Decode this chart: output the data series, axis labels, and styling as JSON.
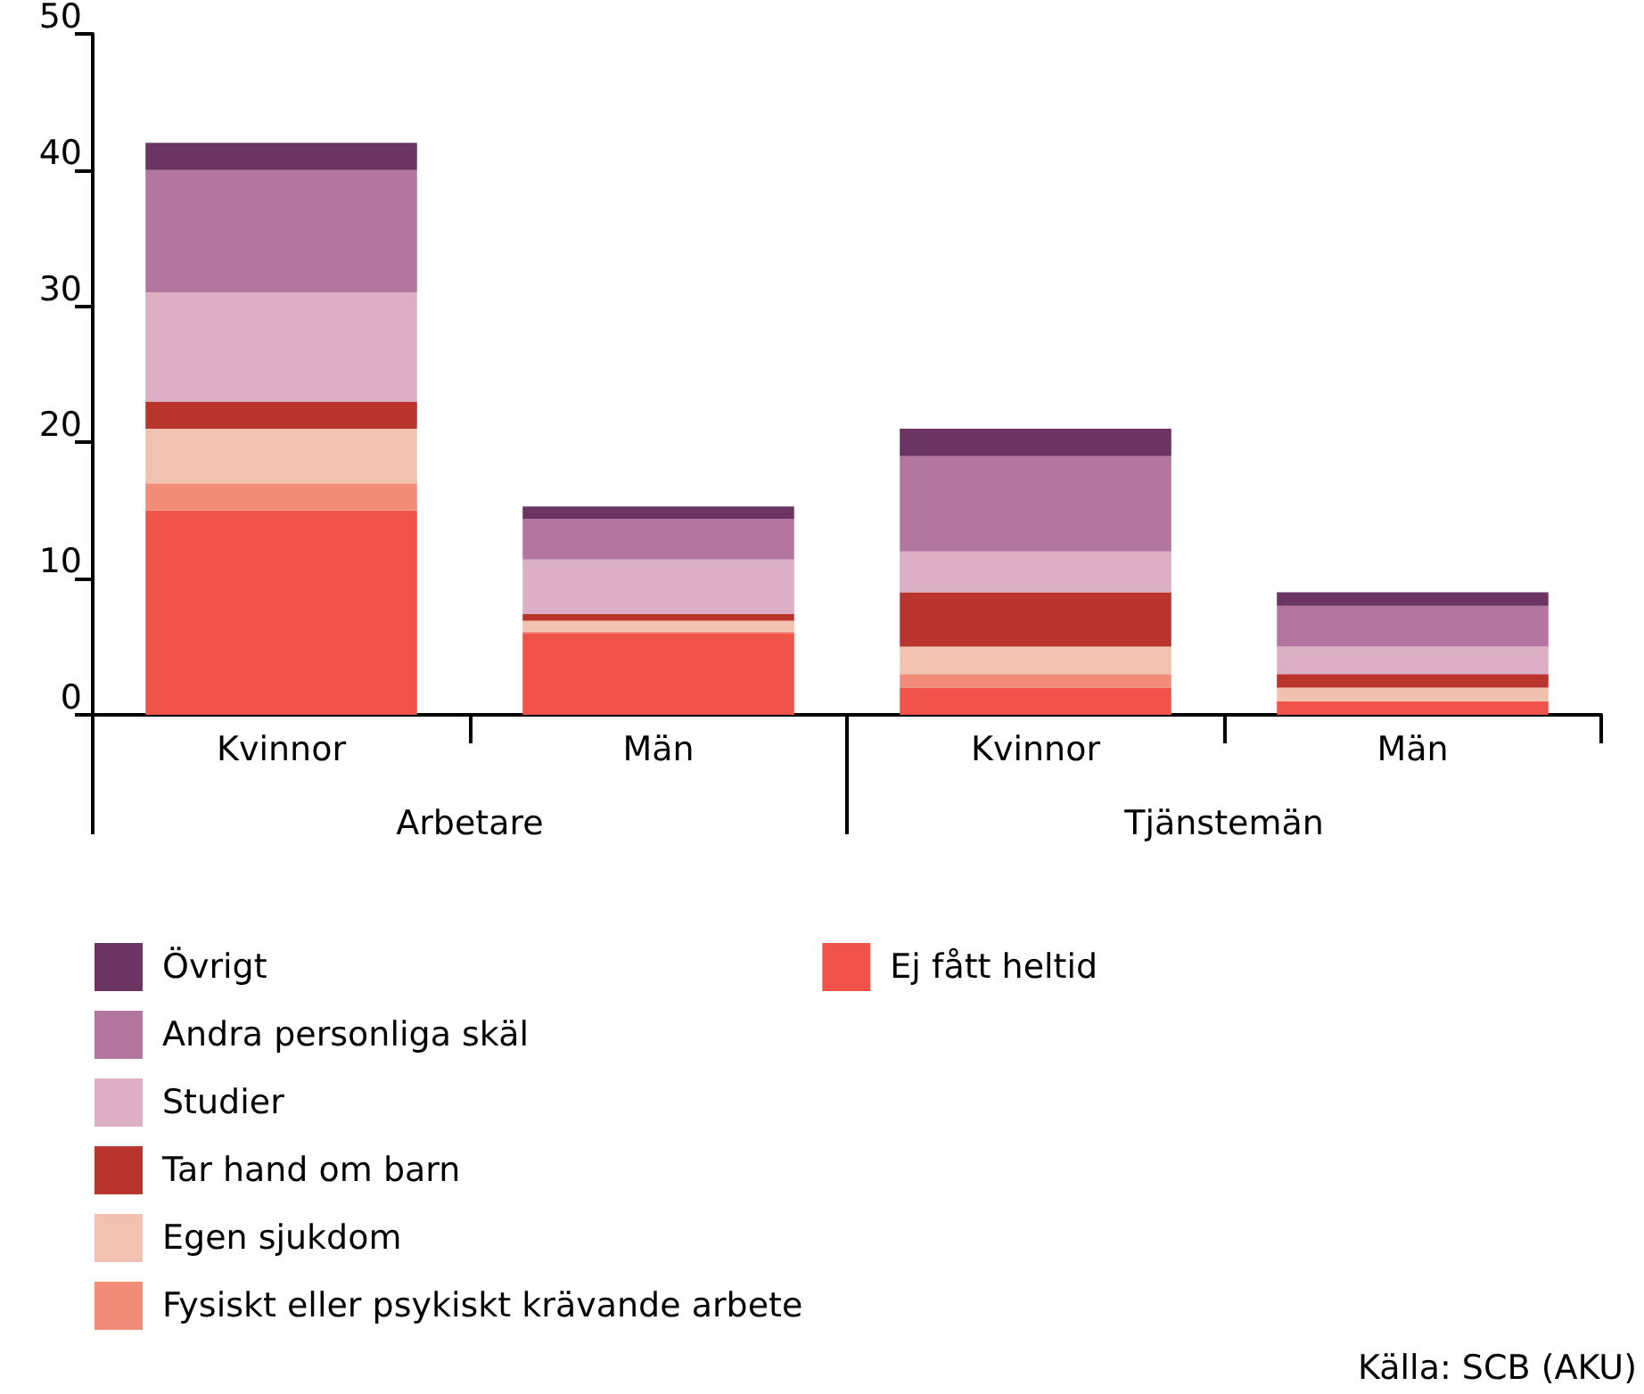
{
  "chart_data": {
    "type": "bar",
    "stacked": true,
    "categories": [
      "Kvinnor",
      "Män",
      "Kvinnor",
      "Män"
    ],
    "series": [
      {
        "name": "Ej fått heltid",
        "color": "#ef5349",
        "values": [
          15,
          6,
          2,
          1
        ]
      },
      {
        "name": "Fysiskt eller psykiskt krävande arbete",
        "color": "#f08c78",
        "values": [
          2,
          0.1,
          1,
          0
        ]
      },
      {
        "name": "Egen sjukdom",
        "color": "#f2c2b0",
        "values": [
          4,
          0.8,
          2,
          1
        ]
      },
      {
        "name": "Tar hand om barn",
        "color": "#b9342d",
        "values": [
          2,
          0.5,
          4,
          1
        ]
      },
      {
        "name": "Studier",
        "color": "#ddafc5",
        "values": [
          8,
          4,
          3,
          2
        ]
      },
      {
        "name": "Andra personliga skäl",
        "color": "#b2769f",
        "values": [
          9,
          3,
          7,
          3
        ]
      },
      {
        "name": "Övrigt",
        "color": "#6b3563",
        "values": [
          2,
          0.9,
          2,
          1
        ]
      }
    ],
    "ylim": [
      0,
      50
    ],
    "yticks": [
      0,
      10,
      20,
      30,
      40,
      50
    ],
    "grid": false,
    "legend": "bottom left",
    "annotations": [
      "Arbetare",
      "Tjänstemän",
      "Källa: SCB (AKU)"
    ]
  }
}
